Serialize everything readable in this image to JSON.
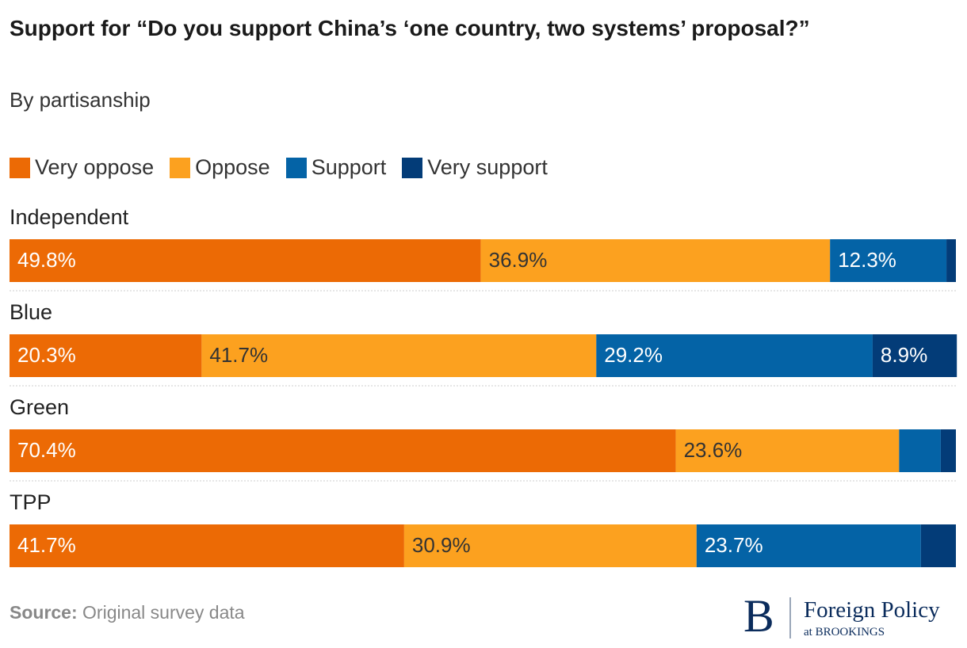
{
  "chart_data": {
    "type": "bar",
    "orientation": "horizontal",
    "stacked": true,
    "title": "Support for “Do you support China’s ‘one country, two systems’ proposal?”",
    "subtitle": "By partisanship",
    "categories": [
      "Independent",
      "Blue",
      "Green",
      "TPP"
    ],
    "xlim": [
      0,
      100
    ],
    "series": [
      {
        "name": "Very oppose",
        "color": "#ec6a05",
        "values": [
          49.8,
          20.3,
          70.4,
          41.7
        ],
        "value_labels": [
          "49.8%",
          "20.3%",
          "70.4%",
          "41.7%"
        ]
      },
      {
        "name": "Oppose",
        "color": "#fca11f",
        "values": [
          36.9,
          41.7,
          23.6,
          30.9
        ],
        "value_labels": [
          "36.9%",
          "41.7%",
          "23.6%",
          "30.9%"
        ]
      },
      {
        "name": "Support",
        "color": "#0463a6",
        "values": [
          12.3,
          29.2,
          4.4,
          23.7
        ],
        "value_labels": [
          "12.3%",
          "29.2%",
          null,
          "23.7%"
        ]
      },
      {
        "name": "Very support",
        "color": "#033c78",
        "values": [
          1.0,
          8.9,
          1.6,
          3.7
        ],
        "value_labels": [
          null,
          "8.9%",
          null,
          null
        ]
      }
    ]
  },
  "footer": {
    "source_label": "Source:",
    "source": "Original survey data",
    "logo_mark": "B",
    "logo_name": "Foreign Policy",
    "logo_sub": "at BROOKINGS"
  }
}
